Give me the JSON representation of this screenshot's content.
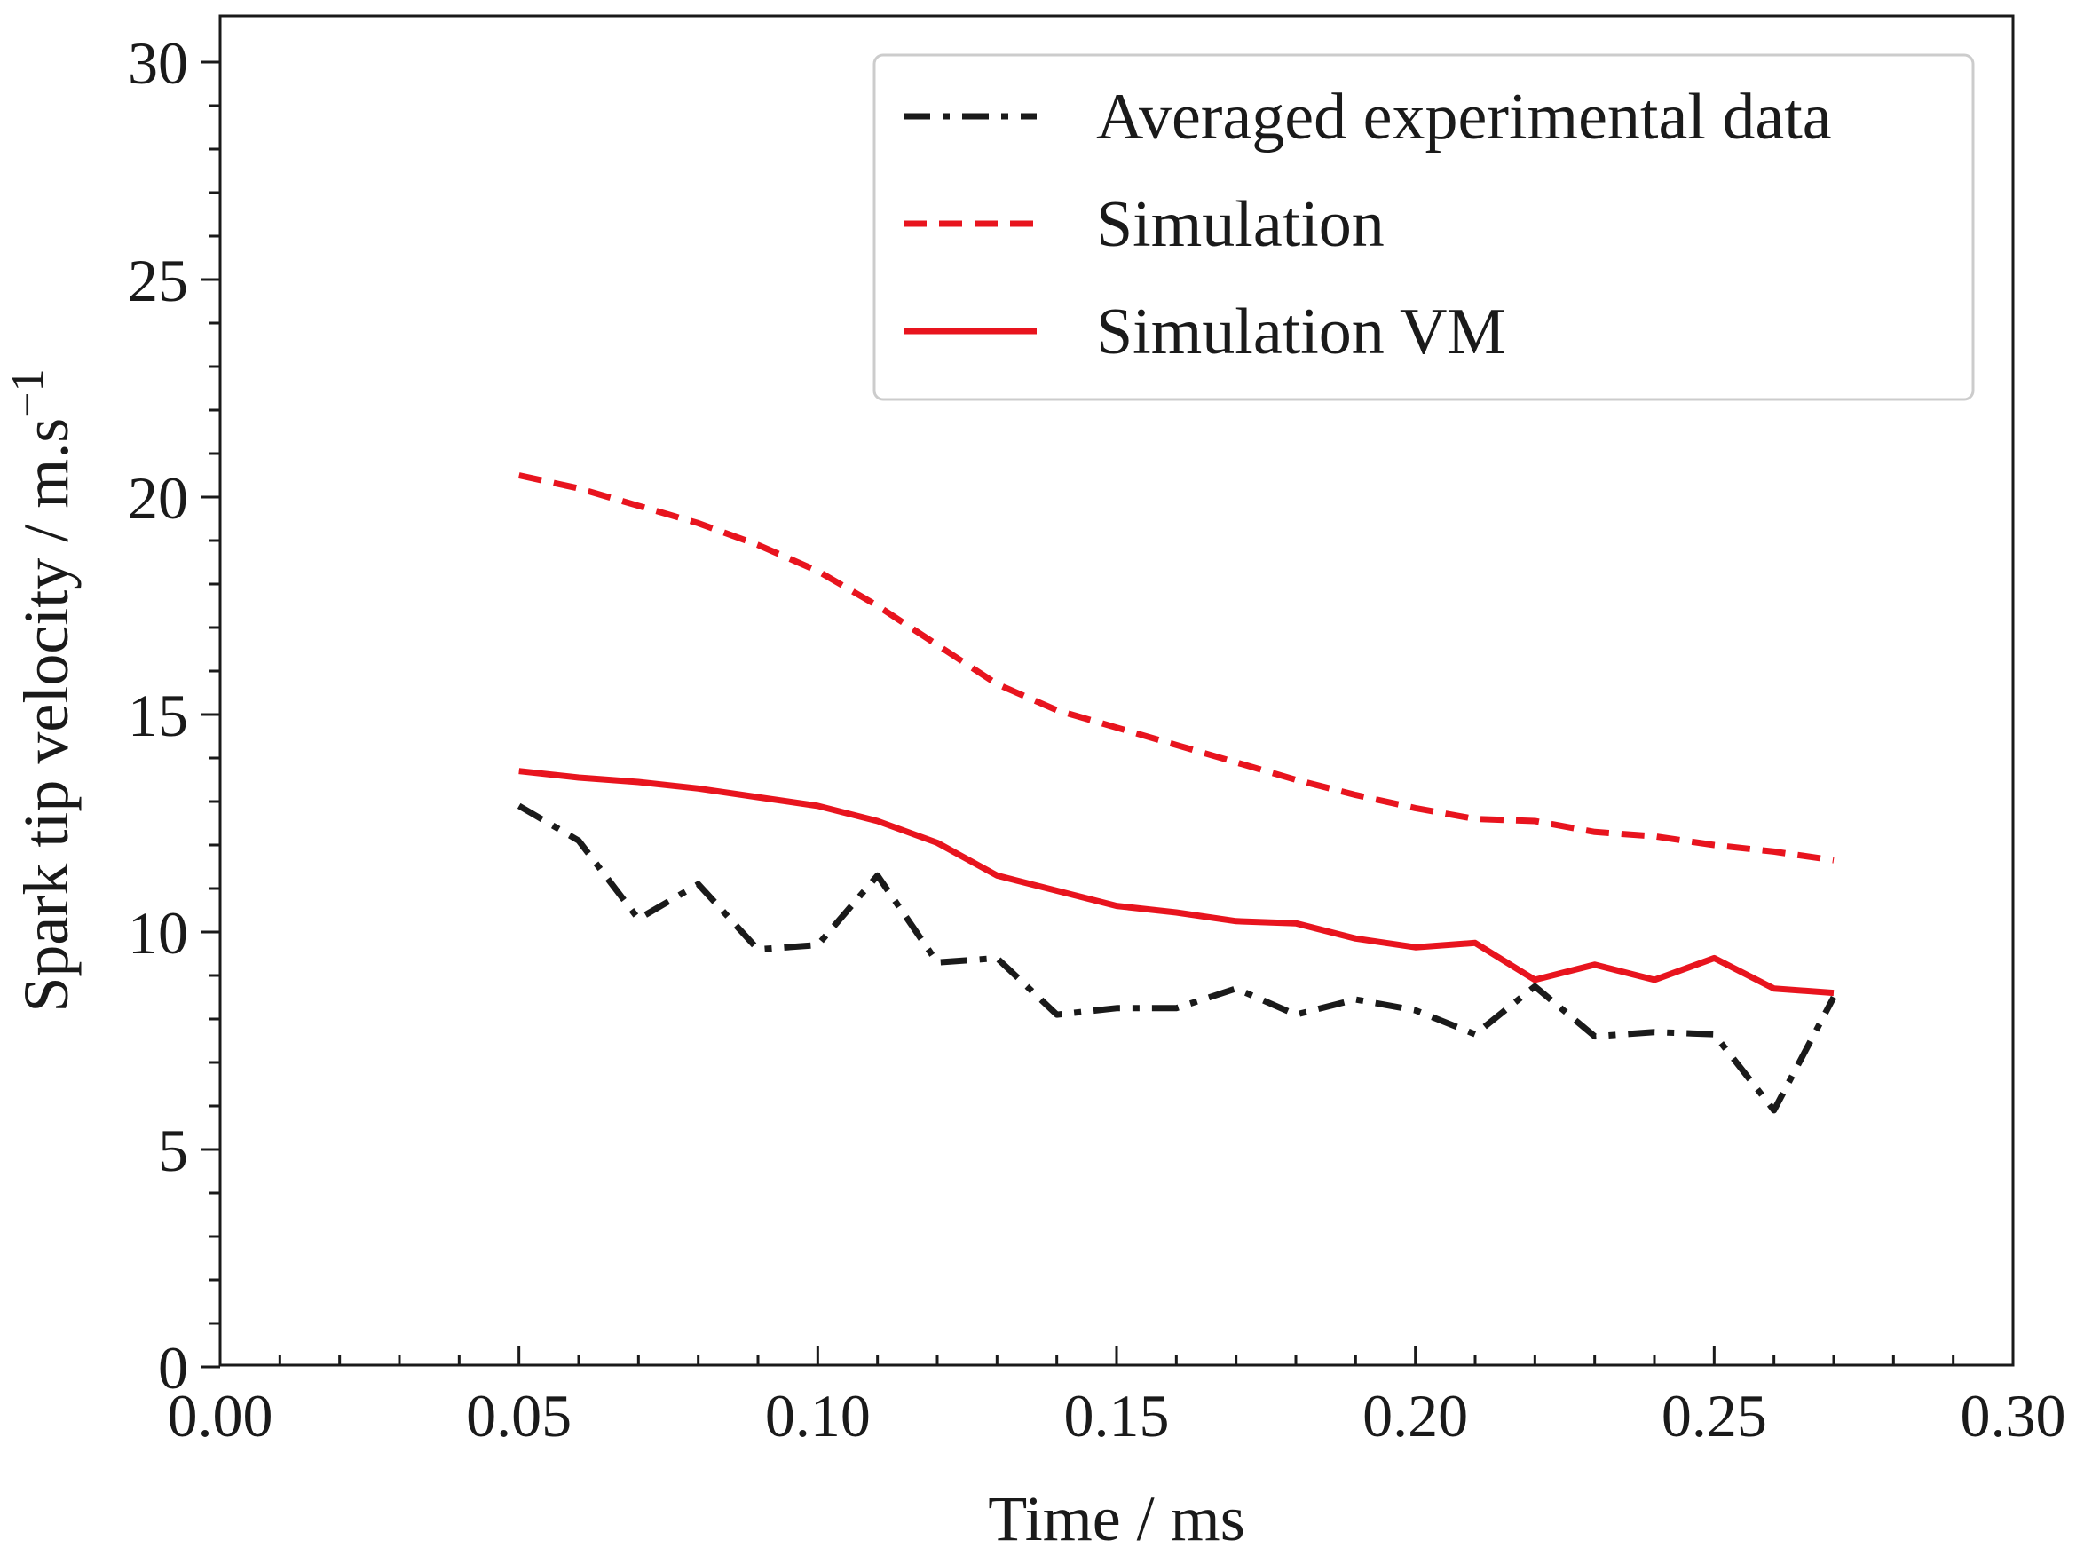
{
  "chart_data": {
    "type": "line",
    "title": "",
    "xlabel": "Time / ms",
    "ylabel_main": "Spark tip velocity / m.s",
    "ylabel_superscript": "−1",
    "xlim": [
      0.0,
      0.3
    ],
    "ylim": [
      0,
      30
    ],
    "x_ticks": [
      0.0,
      0.05,
      0.1,
      0.15,
      0.2,
      0.25,
      0.3
    ],
    "x_tick_labels": [
      "0.00",
      "0.05",
      "0.10",
      "0.15",
      "0.20",
      "0.25",
      "0.30"
    ],
    "y_ticks": [
      0,
      5,
      10,
      15,
      20,
      25,
      30
    ],
    "y_tick_labels": [
      "0",
      "5",
      "10",
      "15",
      "20",
      "25",
      "30"
    ],
    "grid": false,
    "legend_position": "top-right",
    "x": [
      0.05,
      0.06,
      0.07,
      0.08,
      0.09,
      0.1,
      0.11,
      0.12,
      0.13,
      0.14,
      0.15,
      0.16,
      0.17,
      0.18,
      0.19,
      0.2,
      0.21,
      0.22,
      0.23,
      0.24,
      0.25,
      0.26,
      0.27
    ],
    "series": [
      {
        "name": "Averaged experimental data",
        "color": "#1a1a1a",
        "style": "dashdot",
        "values": [
          12.9,
          12.1,
          10.3,
          11.1,
          9.6,
          9.7,
          11.3,
          9.3,
          9.4,
          8.1,
          8.25,
          8.25,
          8.7,
          8.1,
          8.45,
          8.2,
          7.65,
          8.75,
          7.6,
          7.7,
          7.65,
          5.9,
          8.5
        ]
      },
      {
        "name": "Simulation",
        "color": "#e8141e",
        "style": "dashed",
        "values": [
          20.5,
          20.2,
          19.8,
          19.4,
          18.9,
          18.3,
          17.5,
          16.6,
          15.7,
          15.1,
          14.7,
          14.3,
          13.9,
          13.5,
          13.15,
          12.85,
          12.6,
          12.55,
          12.3,
          12.2,
          12.0,
          11.85,
          11.65
        ]
      },
      {
        "name": "Simulation VM",
        "color": "#e8141e",
        "style": "solid",
        "values": [
          13.7,
          13.55,
          13.45,
          13.3,
          13.1,
          12.9,
          12.55,
          12.05,
          11.3,
          10.95,
          10.6,
          10.45,
          10.25,
          10.2,
          9.85,
          9.65,
          9.75,
          8.9,
          9.25,
          8.9,
          9.4,
          8.7,
          8.6
        ]
      }
    ]
  }
}
